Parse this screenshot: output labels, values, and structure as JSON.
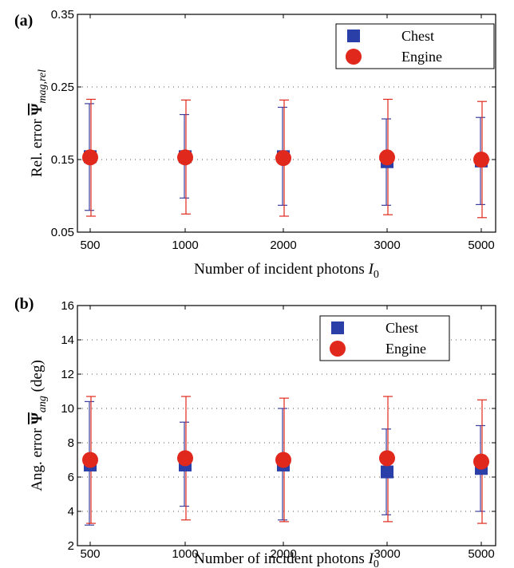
{
  "colors": {
    "chest": "#2b3fa8",
    "engine": "#e0291c",
    "errorbar_chest": "#3a3fa0",
    "errorbar_engine": "#e0291c"
  },
  "chart_data": [
    {
      "type": "scatter",
      "panel": "(a)",
      "xlabel": "Number of incident photons",
      "xlabel_symbol": "I",
      "xlabel_sub": "0",
      "ylabel_prefix": "Rel. error",
      "ylabel_symbol": "Ψ",
      "ylabel_sub": "mag,rel",
      "categories": [
        "500",
        "1000",
        "2000",
        "3000",
        "5000"
      ],
      "ylim": [
        0.05,
        0.35
      ],
      "yticks": [
        "0.05",
        "0.15",
        "0.25",
        "0.35"
      ],
      "ytick_values": [
        0.05,
        0.15,
        0.25,
        0.35
      ],
      "grid_y": [
        0.15,
        0.25
      ],
      "grid": "dotted horizontal",
      "legend": "top-right",
      "series": [
        {
          "name": "Chest",
          "marker": "square",
          "values": [
            0.154,
            0.154,
            0.154,
            0.147,
            0.148
          ],
          "lower": [
            0.08,
            0.097,
            0.087,
            0.087,
            0.088
          ],
          "upper": [
            0.227,
            0.212,
            0.222,
            0.206,
            0.208
          ]
        },
        {
          "name": "Engine",
          "marker": "circle",
          "values": [
            0.153,
            0.153,
            0.152,
            0.153,
            0.15
          ],
          "lower": [
            0.072,
            0.075,
            0.072,
            0.074,
            0.07
          ],
          "upper": [
            0.233,
            0.232,
            0.232,
            0.233,
            0.23
          ]
        }
      ]
    },
    {
      "type": "scatter",
      "panel": "(b)",
      "xlabel": "Number of incident photons",
      "xlabel_symbol": "I",
      "xlabel_sub": "0",
      "ylabel_prefix": "Ang. error",
      "ylabel_symbol": "Ψ",
      "ylabel_sub": "ang",
      "ylabel_suffix": "(deg)",
      "categories": [
        "500",
        "1000",
        "2000",
        "3000",
        "5000"
      ],
      "ylim": [
        2,
        16
      ],
      "yticks": [
        "2",
        "4",
        "6",
        "8",
        "10",
        "12",
        "14",
        "16"
      ],
      "ytick_values": [
        2,
        4,
        6,
        8,
        10,
        12,
        14,
        16
      ],
      "grid_y": [
        4,
        6,
        8,
        10,
        12,
        14
      ],
      "grid": "dotted horizontal",
      "legend": "top-right",
      "series": [
        {
          "name": "Chest",
          "marker": "square",
          "values": [
            6.7,
            6.7,
            6.7,
            6.3,
            6.5
          ],
          "lower": [
            3.2,
            4.3,
            3.5,
            3.8,
            4.0
          ],
          "upper": [
            10.4,
            9.2,
            10.0,
            8.8,
            9.0
          ]
        },
        {
          "name": "Engine",
          "marker": "circle",
          "values": [
            7.0,
            7.1,
            7.0,
            7.1,
            6.9
          ],
          "lower": [
            3.3,
            3.5,
            3.4,
            3.4,
            3.3
          ],
          "upper": [
            10.7,
            10.7,
            10.6,
            10.7,
            10.5
          ]
        }
      ]
    }
  ]
}
